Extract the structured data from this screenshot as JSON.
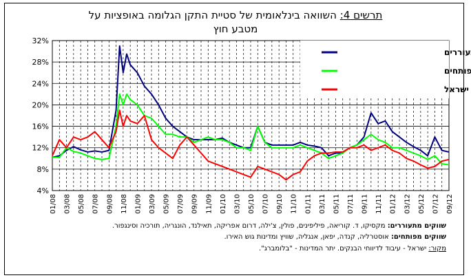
{
  "title_prefix": "תרשים 4:",
  "title_line1": "השוואה בינלאומית של סטיית התקן הגלומה באופציות על",
  "title_line2": "מטבע חוץ",
  "chart_data": {
    "type": "line",
    "ylim": [
      4,
      32
    ],
    "yticks": [
      "4%",
      "8%",
      "12%",
      "16%",
      "20%",
      "24%",
      "28%",
      "32%"
    ],
    "ytick_values": [
      4,
      8,
      12,
      16,
      20,
      24,
      28,
      32
    ],
    "xlim": [
      "2008-01",
      "2012-09"
    ],
    "xtick_labels": [
      "01/08",
      "03/08",
      "05/08",
      "07/08",
      "09/08",
      "11/08",
      "01/09",
      "03/09",
      "05/09",
      "07/09",
      "09/09",
      "11/09",
      "01/10",
      "03/10",
      "05/10",
      "07/10",
      "09/10",
      "11/10",
      "01/11",
      "03/11",
      "05/11",
      "07/11",
      "09/11",
      "11/11",
      "01/12",
      "03/12",
      "05/12",
      "07/12",
      "09/12"
    ],
    "grid": "vertical dashed, horizontal solid",
    "legend_position": "top-right",
    "series": [
      {
        "name": "ממוצע שווקים מתעוררים",
        "color": "#000080",
        "x": [
          "2008-01",
          "2008-02",
          "2008-03",
          "2008-04",
          "2008-05",
          "2008-06",
          "2008-07",
          "2008-08",
          "2008-09",
          "2008-10",
          "2008-10",
          "2008-11",
          "2008-11",
          "2008-12",
          "2009-01",
          "2009-02",
          "2009-03",
          "2009-04",
          "2009-05",
          "2009-06",
          "2009-07",
          "2009-08",
          "2009-09",
          "2009-10",
          "2009-11",
          "2009-12",
          "2010-01",
          "2010-02",
          "2010-03",
          "2010-04",
          "2010-05",
          "2010-06",
          "2010-07",
          "2010-08",
          "2010-09",
          "2010-10",
          "2010-11",
          "2010-12",
          "2011-01",
          "2011-02",
          "2011-03",
          "2011-04",
          "2011-05",
          "2011-06",
          "2011-07",
          "2011-08",
          "2011-09",
          "2011-10",
          "2011-11",
          "2011-12",
          "2012-01",
          "2012-02",
          "2012-03",
          "2012-04",
          "2012-05",
          "2012-06",
          "2012-07",
          "2012-08",
          "2012-09"
        ],
        "values": [
          10.2,
          10.5,
          11.5,
          12.2,
          11.6,
          11.2,
          11.4,
          11.2,
          11.5,
          19,
          31,
          26,
          29.5,
          27.5,
          26,
          23.5,
          22,
          20,
          17.5,
          16,
          15,
          14,
          13.5,
          13.5,
          13.5,
          13.5,
          13.8,
          13,
          12.5,
          12,
          12,
          16,
          13,
          12.5,
          12.5,
          12.5,
          12.5,
          13,
          12.5,
          12.3,
          12,
          10.5,
          11,
          11,
          12,
          12.5,
          14,
          18.5,
          16.5,
          17,
          15,
          14,
          13,
          12.2,
          11.5,
          10.5,
          14,
          11.5,
          11.2
        ]
      },
      {
        "name": "ממוצע שווקים מפותחים",
        "color": "#00ff00",
        "x": [
          "2008-01",
          "2008-02",
          "2008-03",
          "2008-04",
          "2008-05",
          "2008-06",
          "2008-07",
          "2008-08",
          "2008-09",
          "2008-10",
          "2008-10",
          "2008-11",
          "2008-11",
          "2008-12",
          "2009-01",
          "2009-02",
          "2009-03",
          "2009-04",
          "2009-05",
          "2009-06",
          "2009-07",
          "2009-08",
          "2009-09",
          "2009-10",
          "2009-11",
          "2009-12",
          "2010-01",
          "2010-02",
          "2010-03",
          "2010-04",
          "2010-05",
          "2010-06",
          "2010-07",
          "2010-08",
          "2010-09",
          "2010-10",
          "2010-11",
          "2010-12",
          "2011-01",
          "2011-02",
          "2011-03",
          "2011-04",
          "2011-05",
          "2011-06",
          "2011-07",
          "2011-08",
          "2011-09",
          "2011-10",
          "2011-11",
          "2011-12",
          "2012-01",
          "2012-02",
          "2012-03",
          "2012-04",
          "2012-05",
          "2012-06",
          "2012-07",
          "2012-08",
          "2012-09"
        ],
        "values": [
          10.2,
          10.2,
          12,
          11.3,
          11,
          10.5,
          10,
          9.8,
          10,
          16,
          22,
          20,
          22,
          21,
          20,
          18,
          17.5,
          16,
          14.5,
          14.5,
          14,
          14,
          13,
          13.5,
          14,
          13.5,
          13.5,
          13,
          12,
          12,
          11.5,
          16,
          13,
          12,
          12,
          12,
          12,
          12.5,
          12,
          11.5,
          11,
          10,
          10.5,
          11,
          12,
          12.5,
          13.5,
          14.5,
          13.5,
          13,
          12,
          12,
          11.5,
          11,
          10.5,
          9.8,
          10.5,
          9,
          8.8
        ]
      },
      {
        "name": "סת\"ג ישראל",
        "color": "#ff0000",
        "x": [
          "2008-01",
          "2008-02",
          "2008-03",
          "2008-04",
          "2008-05",
          "2008-06",
          "2008-07",
          "2008-08",
          "2008-09",
          "2008-10",
          "2008-10",
          "2008-11",
          "2008-11",
          "2008-12",
          "2009-01",
          "2009-02",
          "2009-03",
          "2009-04",
          "2009-05",
          "2009-06",
          "2009-07",
          "2009-08",
          "2009-09",
          "2009-10",
          "2009-11",
          "2009-12",
          "2010-01",
          "2010-02",
          "2010-03",
          "2010-04",
          "2010-05",
          "2010-06",
          "2010-07",
          "2010-08",
          "2010-09",
          "2010-10",
          "2010-11",
          "2010-12",
          "2011-01",
          "2011-02",
          "2011-03",
          "2011-04",
          "2011-05",
          "2011-06",
          "2011-07",
          "2011-08",
          "2011-09",
          "2011-10",
          "2011-11",
          "2011-12",
          "2012-01",
          "2012-02",
          "2012-03",
          "2012-04",
          "2012-05",
          "2012-06",
          "2012-07",
          "2012-08",
          "2012-09"
        ],
        "values": [
          10.5,
          13.5,
          12,
          14,
          13.5,
          14,
          15,
          13.5,
          12,
          15,
          19,
          16,
          18,
          17,
          16.5,
          18,
          13.5,
          12,
          11,
          10,
          12.5,
          14,
          12.5,
          11,
          9.5,
          9,
          8.5,
          8,
          7.5,
          7,
          6.5,
          8.5,
          8,
          7.5,
          7,
          6,
          7,
          7.5,
          9.5,
          10.5,
          11,
          11,
          11.2,
          11.2,
          12,
          12,
          12.5,
          11.5,
          12,
          12.5,
          11.5,
          11,
          10,
          9.5,
          8.8,
          8.2,
          8.5,
          9.5,
          9.8
        ]
      }
    ]
  },
  "notes": {
    "emerging_label": "שווקים מתעוררים:",
    "emerging_text": "מקסיקו, ד. קוריאה, פיליפינים, פולין, צ'ילה, דרום אפריקה, תאילנד, הונגריה, תורכיה וסינגפור.",
    "developed_label": "שווקים מפותחים:",
    "developed_text": "אוסטרליה, קנדה, יפאן, אנגליה, שוויץ ומדינות גוש האירו.",
    "source_label": "מקור:",
    "source_text": "ישראל - עיבוד לדיווחי הבנקים. יתר המדינות - \"בלומברג\"."
  }
}
